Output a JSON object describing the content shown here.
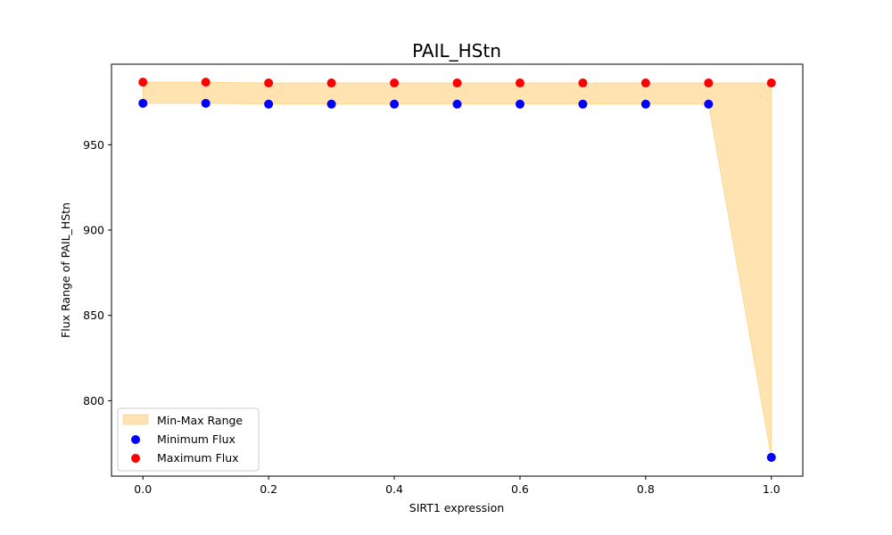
{
  "chart_data": {
    "type": "scatter",
    "title": "PAIL_HStn",
    "xlabel": "SIRT1 expression",
    "ylabel": "Flux Range of PAIL_HStn",
    "x": [
      0.0,
      0.1,
      0.2,
      0.3,
      0.4,
      0.5,
      0.6,
      0.7,
      0.8,
      0.9,
      1.0
    ],
    "series": [
      {
        "name": "Minimum Flux",
        "color": "#0000ff",
        "values": [
          974.3,
          974.3,
          973.8,
          973.8,
          973.8,
          973.8,
          973.8,
          973.8,
          973.8,
          973.8,
          766.8
        ]
      },
      {
        "name": "Maximum Flux",
        "color": "#ff0000",
        "values": [
          986.7,
          986.7,
          986.2,
          986.2,
          986.2,
          986.2,
          986.2,
          986.2,
          986.2,
          986.2,
          986.2
        ]
      }
    ],
    "band": {
      "name": "Min-Max Range",
      "color": "#ffa500",
      "opacity": 0.3
    },
    "xlim": [
      -0.05,
      1.05
    ],
    "ylim": [
      755.8,
      997.2
    ],
    "xticks": [
      0.0,
      0.2,
      0.4,
      0.6,
      0.8,
      1.0
    ],
    "xtick_labels": [
      "0.0",
      "0.2",
      "0.4",
      "0.6",
      "0.8",
      "1.0"
    ],
    "yticks": [
      800,
      850,
      900,
      950
    ],
    "ytick_labels": [
      "800",
      "850",
      "900",
      "950"
    ],
    "grid": false,
    "legend_position": "lower-left"
  }
}
